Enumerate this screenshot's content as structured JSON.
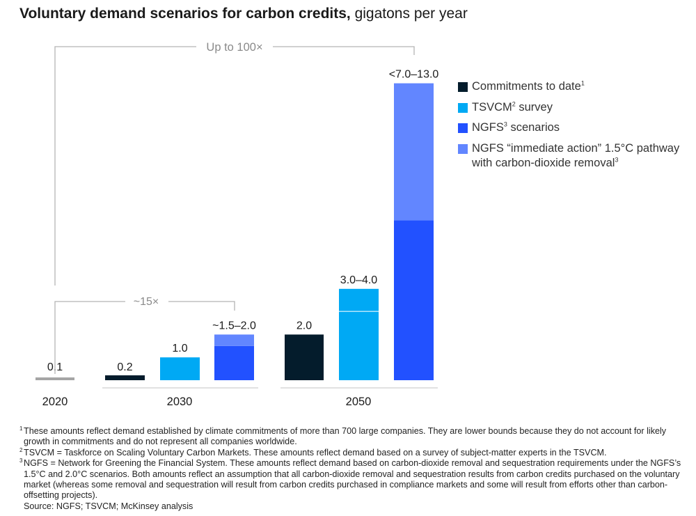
{
  "title": {
    "bold": "Voluntary demand scenarios for carbon credits,",
    "normal": " gigatons per year"
  },
  "colors": {
    "commitments": "#041c2c",
    "tsvcm": "#00a9f4",
    "ngfs": "#2251ff",
    "ngfs_immediate": "#6286ff",
    "baseline_2020": "#a5a5a5",
    "annotation": "#b3b3b3"
  },
  "chart_data": {
    "type": "bar",
    "title": "Voluntary demand scenarios for carbon credits, gigatons per year",
    "xlabel": "",
    "ylabel": "gigatons per year",
    "ylim": [
      0,
      13.0
    ],
    "groups": [
      "2020",
      "2030",
      "2050"
    ],
    "bars": [
      {
        "group": "2020",
        "series": "Baseline 2020",
        "segments": [
          {
            "series": "baseline",
            "low": 0,
            "high": 0.1
          }
        ],
        "label": "0.1"
      },
      {
        "group": "2030",
        "series": "Commitments to date",
        "segments": [
          {
            "series": "commitments",
            "low": 0,
            "high": 0.2
          }
        ],
        "label": "0.2"
      },
      {
        "group": "2030",
        "series": "TSVCM survey",
        "segments": [
          {
            "series": "tsvcm",
            "low": 0,
            "high": 1.0
          }
        ],
        "label": "1.0"
      },
      {
        "group": "2030",
        "series": "NGFS scenarios",
        "segments": [
          {
            "series": "ngfs",
            "low": 0,
            "high": 1.5
          },
          {
            "series": "ngfs_immediate",
            "low": 1.5,
            "high": 2.0
          }
        ],
        "label": "~1.5–2.0"
      },
      {
        "group": "2050",
        "series": "Commitments to date",
        "segments": [
          {
            "series": "commitments",
            "low": 0,
            "high": 2.0
          }
        ],
        "label": "2.0"
      },
      {
        "group": "2050",
        "series": "TSVCM survey",
        "segments": [
          {
            "series": "tsvcm",
            "low": 0,
            "high": 3.0
          },
          {
            "series": "tsvcm",
            "low": 3.0,
            "high": 4.0
          }
        ],
        "label": "3.0–4.0"
      },
      {
        "group": "2050",
        "series": "NGFS scenarios",
        "segments": [
          {
            "series": "ngfs",
            "low": 0,
            "high": 7.0
          },
          {
            "series": "ngfs_immediate",
            "low": 7.0,
            "high": 13.0
          }
        ],
        "label": "<7.0–13.0"
      }
    ],
    "annotations": [
      {
        "text": "~15×",
        "from": "2020",
        "to": "2030 NGFS"
      },
      {
        "text": "Up to 100×",
        "from": "2020",
        "to": "2050 NGFS"
      }
    ]
  },
  "legend": [
    {
      "key": "commitments",
      "label": "Commitments to date",
      "sup": "1"
    },
    {
      "key": "tsvcm",
      "label": "TSVCM",
      "sup": "2",
      "label_after": " survey"
    },
    {
      "key": "ngfs",
      "label": "NGFS",
      "sup": "3",
      "label_after": " scenarios"
    },
    {
      "key": "ngfs_immediate",
      "label": "NGFS “immediate action” 1.5°C pathway with carbon-dioxide removal",
      "sup": "3"
    }
  ],
  "footnotes": [
    {
      "sup": "1",
      "text": "These amounts reflect demand established by climate commitments of more than 700 large companies. They are lower bounds because they do not account for likely growth in commitments and do not represent all companies worldwide."
    },
    {
      "sup": "2",
      "text": "TSVCM = Taskforce on Scaling Voluntary Carbon Markets. These amounts reflect demand based on a survey of subject-matter experts in the TSVCM."
    },
    {
      "sup": "3",
      "text": "NGFS = Network for Greening the Financial System. These amounts reflect demand based on carbon-dioxide removal and sequestration requirements under the NGFS’s 1.5°C and 2.0°C scenarios. Both amounts reflect an assumption that all carbon-dioxide removal and sequestration results from carbon credits purchased on the voluntary market (whereas some removal and sequestration will result from carbon credits purchased in compliance markets and some will result from efforts other than carbon-offsetting projects)."
    }
  ],
  "source": "Source: NGFS; TSVCM; McKinsey analysis"
}
